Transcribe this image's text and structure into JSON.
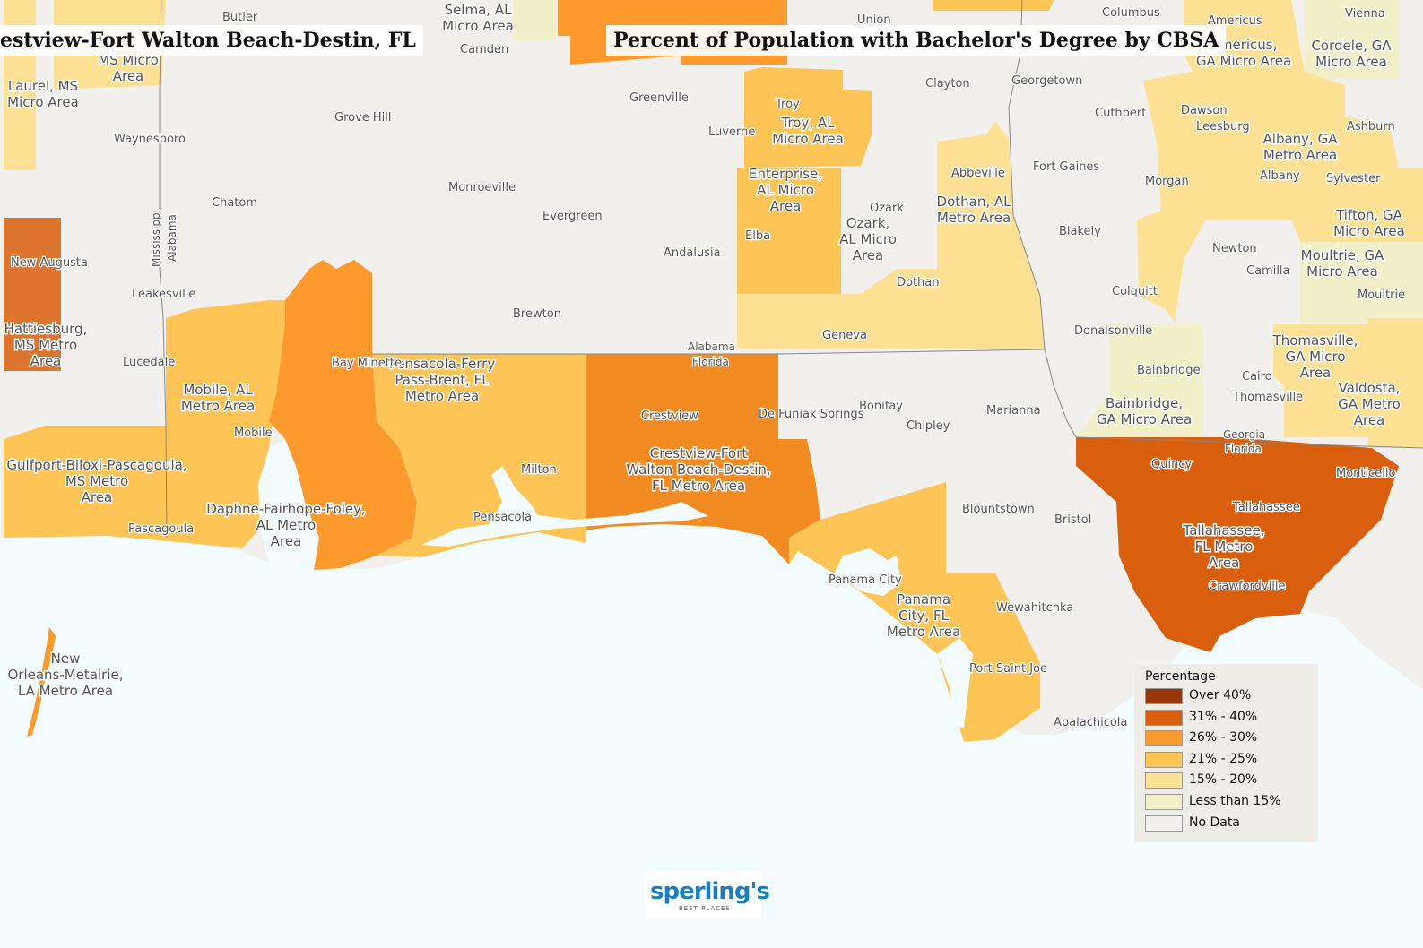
{
  "titles": {
    "left": "estview-Fort Walton Beach-Destin, FL",
    "main": "Percent of Population with Bachelor's Degree by CBSA"
  },
  "colors": {
    "over40": "#9a3509",
    "r31_40": "#d95f0e",
    "r26_30": "#fd9a2d",
    "r21_25": "#fec455",
    "r15_20": "#ffe196",
    "under15": "#f2f0c8",
    "nodata": "#f2f0ec",
    "water": "#f3fcfe"
  },
  "legend": {
    "heading": "Percentage",
    "items": [
      {
        "label": "Over 40%",
        "color": "#9a3509"
      },
      {
        "label": "31% - 40%",
        "color": "#d95f0e"
      },
      {
        "label": "26% - 30%",
        "color": "#fd9a2d"
      },
      {
        "label": "21% - 25%",
        "color": "#fec455"
      },
      {
        "label": "15% - 20%",
        "color": "#ffe196"
      },
      {
        "label": "Less than 15%",
        "color": "#f2f0c8"
      },
      {
        "label": "No Data",
        "color": "#f2f0ec"
      }
    ]
  },
  "logo": {
    "name": "sperling's",
    "tagline": "BEST PLACES"
  },
  "area_labels": [
    "Selma, AL|Micro Area",
    "MS Micro|Area",
    "Laurel, MS|Micro Area",
    "Troy, AL|Micro Area",
    "Enterprise,|AL Micro|Area",
    "Ozark,|AL Micro|Area",
    "Dothan, AL|Metro Area",
    "Americus,|GA Micro Area",
    "Cordele, GA|Micro Area",
    "Albany, GA|Metro Area",
    "Tifton, GA|Micro Area",
    "Moultrie, GA|Micro Area",
    "Thomasville,|GA Micro|Area",
    "Valdosta,|GA Metro|Area",
    "Bainbridge,|GA Micro Area",
    "Hattiesburg,|MS Metro|Area",
    "Mobile, AL|Metro Area",
    "Pensacola-Ferry|Pass-Brent, FL|Metro Area",
    "Crestview-Fort|Walton Beach-Destin,|FL Metro Area",
    "Gulfport-Biloxi-Pascagoula,|MS Metro|Area",
    "Daphne-Fairhope-Foley,|AL Metro|Area",
    "Tallahassee,|FL Metro|Area",
    "Panama|City, FL|Metro Area",
    "New|Orleans-Metairie,|LA Metro Area"
  ],
  "places": [
    "Butler",
    "Camden",
    "Greenville",
    "Luverne",
    "Troy",
    "Clayton",
    "Georgetown",
    "Cuthbert",
    "Dawson",
    "Leesburg",
    "Americus",
    "Vienna",
    "Ashburn",
    "Sylvester",
    "Albany",
    "Morgan",
    "Fort Gaines",
    "Abbeville",
    "Waynesboro",
    "Grove Hill",
    "Chatom",
    "Monroeville",
    "Evergreen",
    "Andalusia",
    "Elba",
    "Ozark",
    "Blakely",
    "Newton",
    "Camilla",
    "Moultrie",
    "Colquitt",
    "New Augusta",
    "Leakesville",
    "Brewton",
    "Dothan",
    "Geneva",
    "Donalsonville",
    "Lucedale",
    "Bay Minette",
    "Bainbridge",
    "Cairo",
    "Thomasville",
    "Mobile",
    "Crestview",
    "De Funiak Springs",
    "Bonifay",
    "Chipley",
    "Marianna",
    "Milton",
    "Pensacola",
    "Pascagoula",
    "Blountstown",
    "Bristol",
    "Quincy",
    "Monticello",
    "Tallahassee",
    "Crawfordville",
    "Panama City",
    "Wewahitchka",
    "Port Saint Joe",
    "Apalachicola",
    "Columbus",
    "Union"
  ],
  "borders": [
    "Mississippi",
    "Alabama",
    "Alabama",
    "Florida",
    "Georgia",
    "Florida"
  ]
}
